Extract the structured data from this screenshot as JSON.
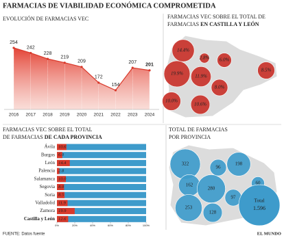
{
  "title": "FARMACIAS DE VIABILIDAD ECONÓMICA COMPROMETIDA",
  "source": "FUENTE: Datos fuente",
  "credit": "EL MUNDO",
  "chart_data": [
    {
      "type": "area",
      "title": "EVOLUCIÓN DE FARMACIAS VEC",
      "x": [
        2016,
        2017,
        2018,
        2019,
        2020,
        2021,
        2022,
        2023,
        2024
      ],
      "values": [
        254,
        242,
        228,
        219,
        209,
        172,
        154,
        207,
        201
      ],
      "color": "#d8392b"
    },
    {
      "type": "bubble-map",
      "title": "FARMACIAS VEC SOBRE EL TOTAL DE",
      "title_line2": "FARMACIAS",
      "title_emphasis": "EN CASTILLA Y LEÓN",
      "categories": [
        "León",
        "Palencia",
        "Burgos",
        "Zamora",
        "Valladolid",
        "Soria",
        "Segovia",
        "Salamanca",
        "Ávila"
      ],
      "values": [
        14.4,
        2.8,
        6.0,
        19.9,
        11.9,
        8.5,
        8.0,
        10.0,
        10.6
      ],
      "value_labels": [
        "14.4%",
        "2.8%",
        "6.0%",
        "19.9%",
        "11.9%",
        "8.5%",
        "8.0%",
        "10.0%",
        "10.6%"
      ],
      "color": "#c8322a"
    },
    {
      "type": "bar",
      "title": "FARMACIAS VEC SOBRE EL TOTAL",
      "title_line2": "DE FARMACIAS",
      "title_emphasis": "DE CADA PROVINCIA",
      "categories": [
        "Ávila",
        "Burgos",
        "León",
        "Palencia",
        "Salamanca",
        "Segovia",
        "Soria",
        "Valladolid",
        "Zamora",
        "Castilla y León"
      ],
      "values": [
        10.6,
        6.0,
        14.4,
        2.8,
        10.0,
        8.0,
        8.5,
        11.9,
        19.9,
        12.6
      ],
      "value_labels": [
        "10.6",
        "6.0",
        "14.4",
        "2.8",
        "10.0",
        "8.0",
        "8.5",
        "11.9",
        "19.9",
        "12.6"
      ],
      "color": "#d8392b",
      "track_color": "#3e9bcb",
      "xlim": [
        0,
        100
      ],
      "xticks": [
        {
          "value": 0,
          "label": "0%"
        },
        {
          "value": 20,
          "label": "20%"
        },
        {
          "value": 40,
          "label": "40%"
        },
        {
          "value": 60,
          "label": "60%"
        },
        {
          "value": 80,
          "label": "80%"
        },
        {
          "value": 100,
          "label": "100%"
        }
      ]
    },
    {
      "type": "bubble-map",
      "title": "TOTAL DE FARMACIAS",
      "title_line2": "POR PROVINCIA",
      "categories": [
        "León",
        "Palencia",
        "Burgos",
        "Zamora",
        "Valladolid",
        "Soria",
        "Segovia",
        "Salamanca",
        "Ávila"
      ],
      "values": [
        322,
        96,
        198,
        162,
        280,
        60,
        97,
        253,
        128
      ],
      "color": "#3e9bcb",
      "total_label": "Total",
      "total": 1596,
      "total_value_label": "1.596"
    }
  ]
}
